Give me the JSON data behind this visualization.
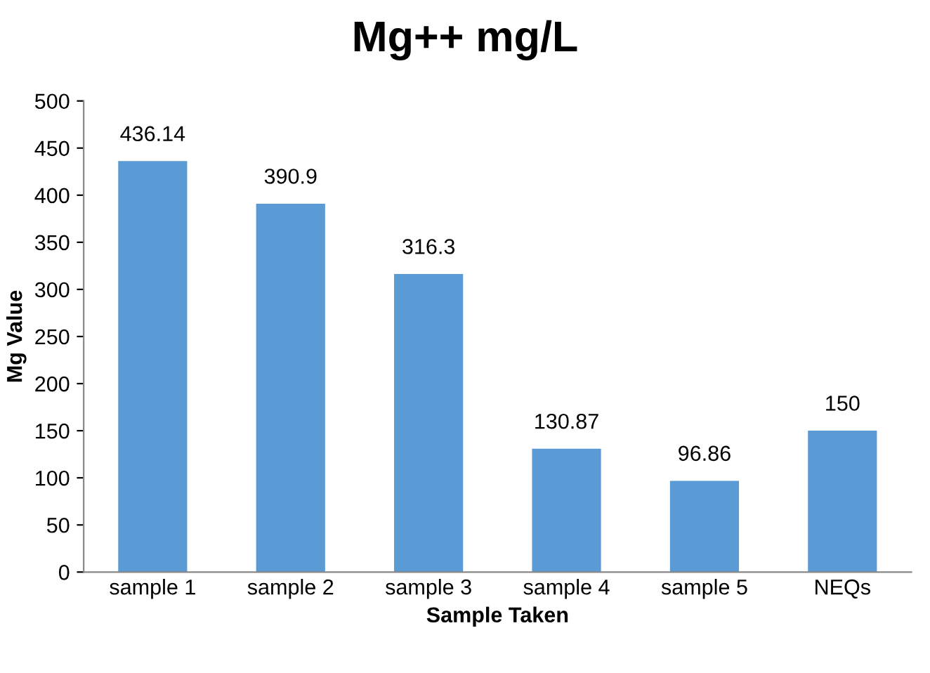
{
  "chart_data": {
    "type": "bar",
    "title": "Mg++ mg/L",
    "xlabel": "Sample Taken",
    "ylabel": "Mg Value",
    "categories": [
      "sample 1",
      "sample 2",
      "sample 3",
      "sample 4",
      "sample 5",
      "NEQs"
    ],
    "values": [
      436.14,
      390.9,
      316.3,
      130.87,
      96.86,
      150
    ],
    "color": "#5b9bd5",
    "data_labels": true,
    "ylim": [
      0,
      500
    ],
    "yticks": [
      0,
      50,
      100,
      150,
      200,
      250,
      300,
      350,
      400,
      450,
      500
    ],
    "grid": false
  }
}
